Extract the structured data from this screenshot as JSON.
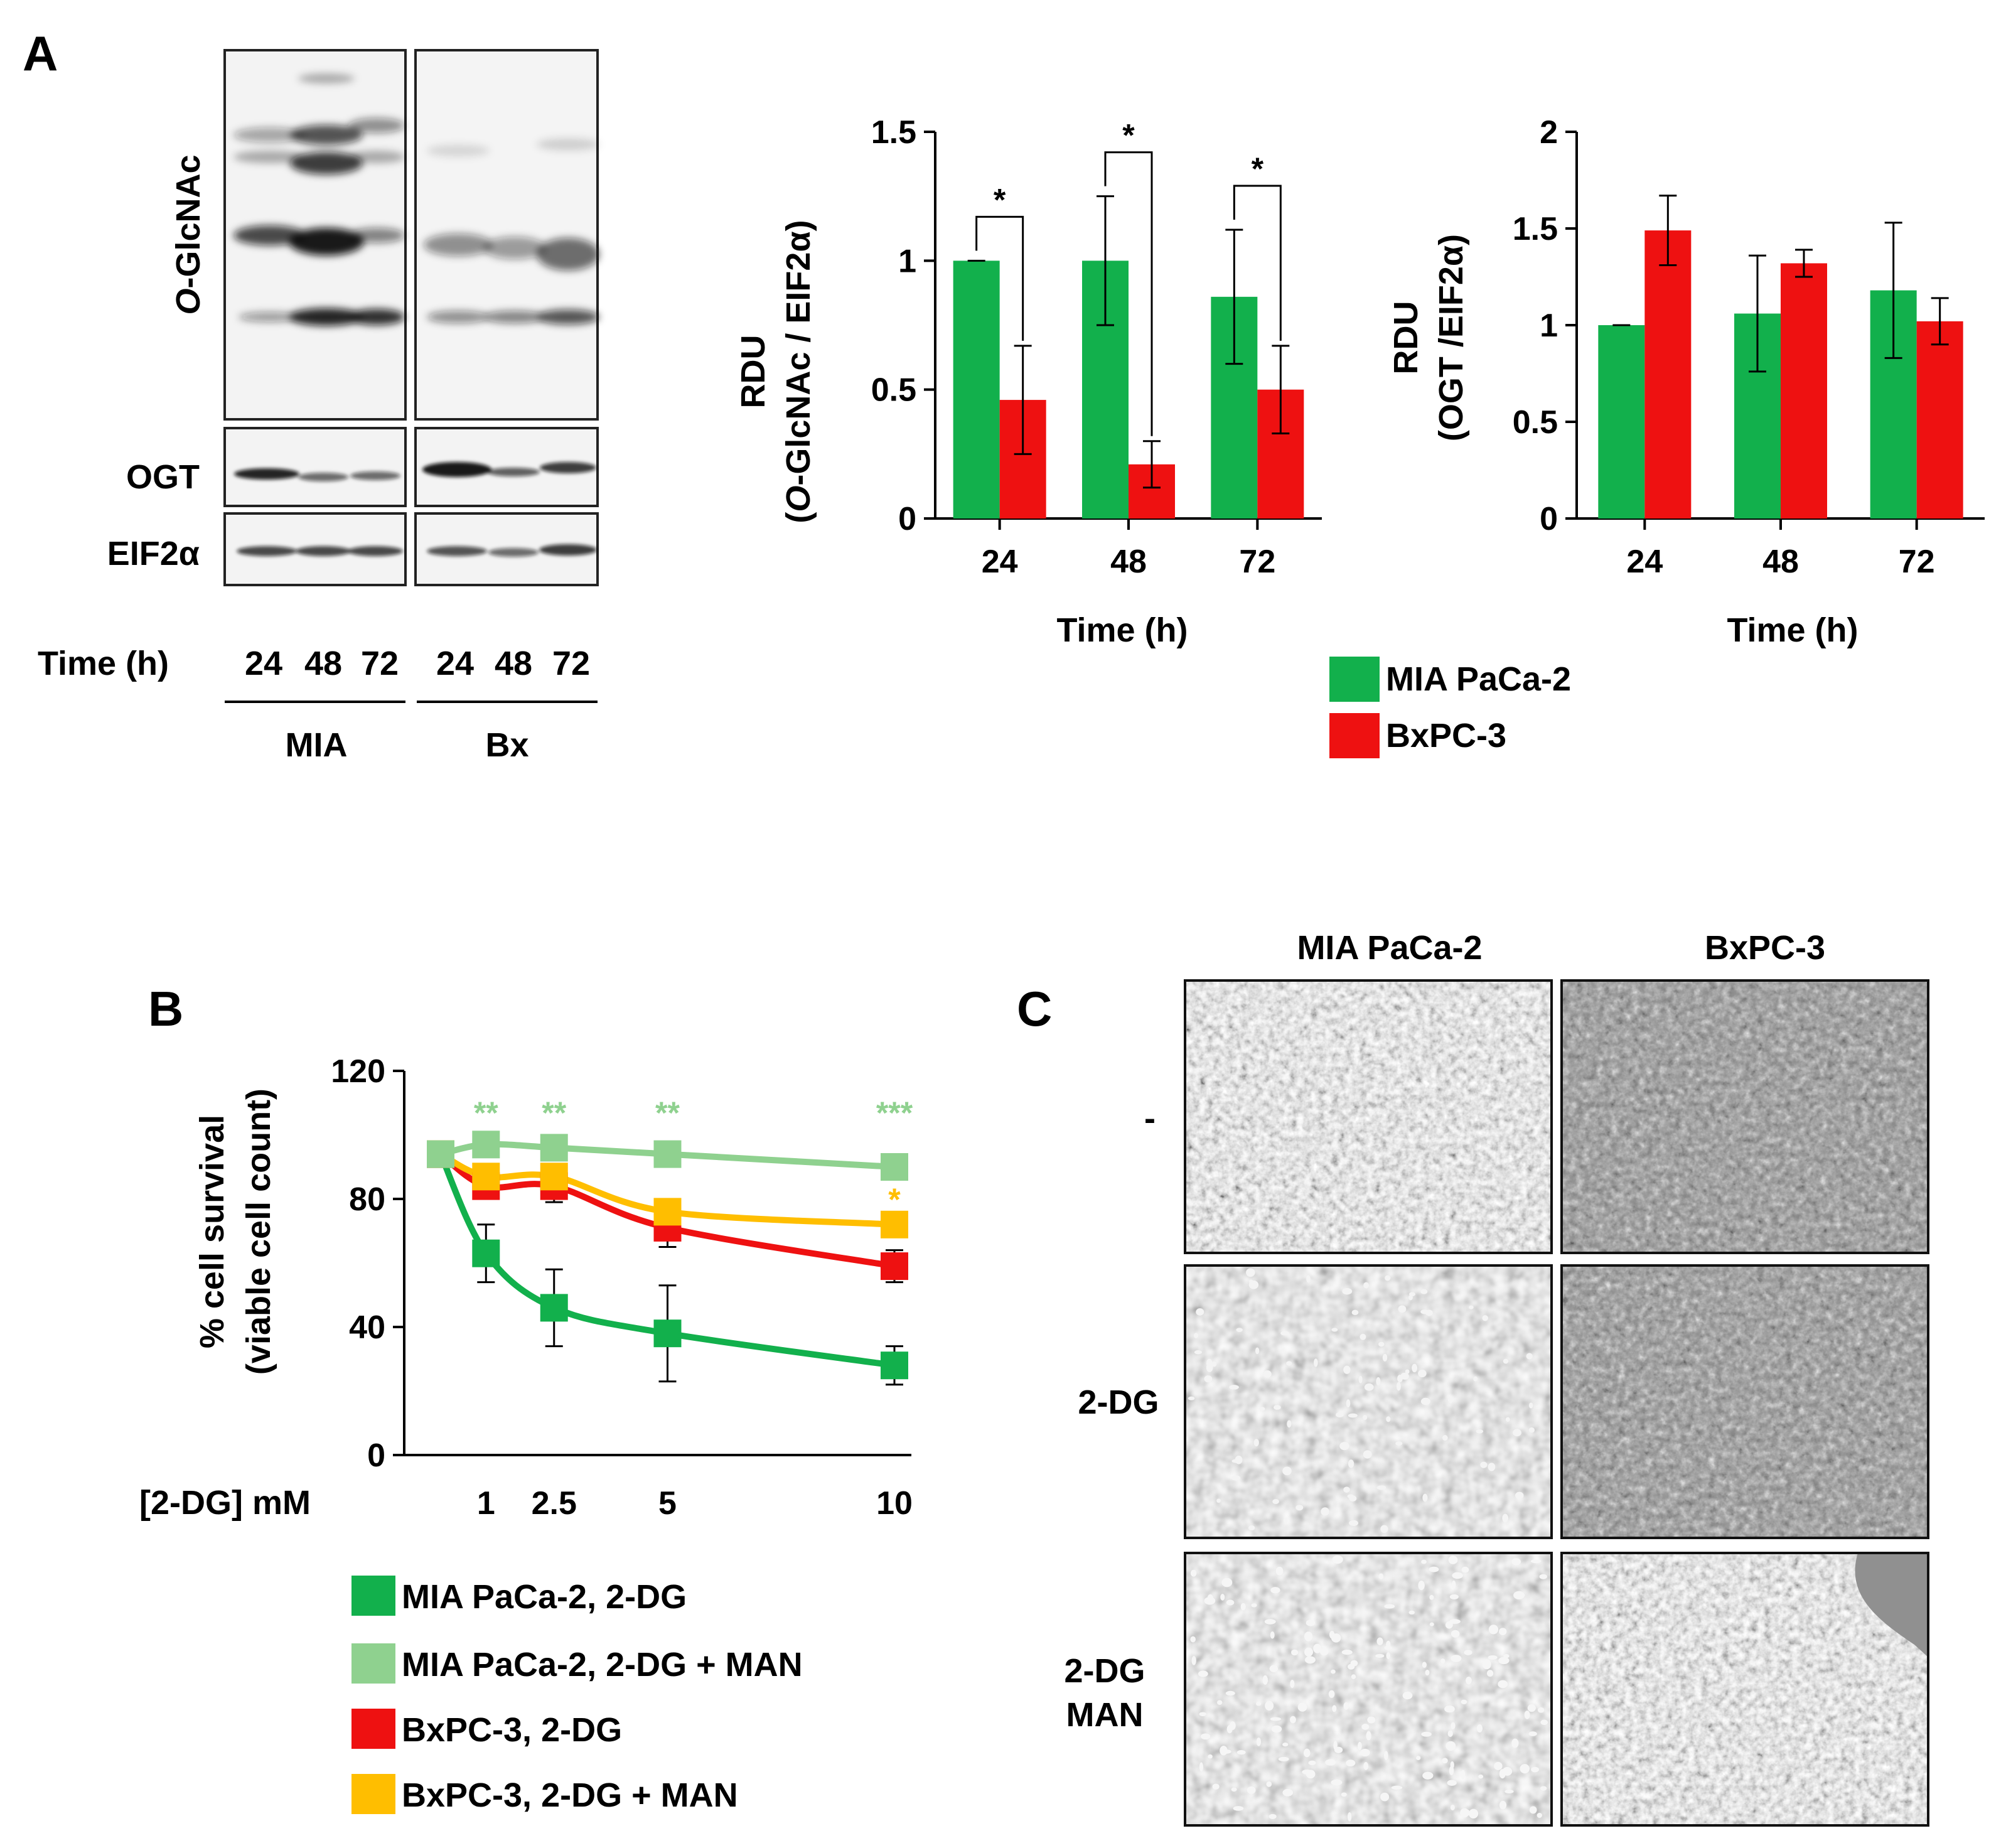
{
  "panel_a": {
    "letter": "A",
    "blot": {
      "rows": [
        "O-GlcNAc",
        "OGT",
        "EIF2α"
      ],
      "time_label": "Time (h)",
      "lanes": [
        "24",
        "48",
        "72",
        "24",
        "48",
        "72"
      ],
      "groups": [
        "MIA",
        "Bx"
      ]
    }
  },
  "panel_b": {
    "letter": "B"
  },
  "panel_c": {
    "letter": "C",
    "columns": [
      "MIA PaCa-2",
      "BxPC-3"
    ],
    "rows": [
      "-",
      "2-DG",
      "2-DG\nMAN"
    ]
  },
  "colors": {
    "mia": "#12b04c",
    "bx": "#ee1111",
    "mia_man": "#8fd18f",
    "bx_man": "#ffbe00"
  },
  "chart_data": [
    {
      "id": "ogl",
      "type": "bar",
      "categories": [
        "24",
        "48",
        "72"
      ],
      "series": [
        {
          "name": "MIA PaCa-2",
          "values": [
            1.0,
            1.0,
            0.86
          ],
          "errors": [
            0.0,
            0.25,
            0.26
          ]
        },
        {
          "name": "BxPC-3",
          "values": [
            0.46,
            0.21,
            0.5
          ],
          "errors": [
            0.21,
            0.09,
            0.17
          ]
        }
      ],
      "significance": [
        "*",
        "*",
        "*"
      ],
      "xlabel": "Time (h)",
      "ylabel_line1": "RDU",
      "ylabel_line2_italic": "O",
      "ylabel_line2_rest": "-GlcNAc / EIF2α)",
      "ylabel_line2_open": "(",
      "yticks": [
        "0",
        "0.5",
        "1",
        "1.5"
      ],
      "ylim": [
        0,
        1.5
      ]
    },
    {
      "id": "ogt",
      "type": "bar",
      "categories": [
        "24",
        "48",
        "72"
      ],
      "series": [
        {
          "name": "MIA PaCa-2",
          "values": [
            1.0,
            1.06,
            1.18
          ],
          "errors": [
            0.0,
            0.3,
            0.35
          ]
        },
        {
          "name": "BxPC-3",
          "values": [
            1.49,
            1.32,
            1.02
          ],
          "errors": [
            0.18,
            0.07,
            0.12
          ]
        }
      ],
      "xlabel": "Time (h)",
      "ylabel_line1": "RDU",
      "ylabel_line2": "(OGT /EIF2α)",
      "yticks": [
        "0",
        "0.5",
        "1",
        "1.5",
        "2"
      ],
      "ylim": [
        0,
        2
      ]
    },
    {
      "id": "survival",
      "type": "line",
      "x": [
        0,
        1,
        2.5,
        5,
        10
      ],
      "xtick_labels": [
        "1",
        "2.5",
        "5",
        "10"
      ],
      "xtick_values": [
        1,
        2.5,
        5,
        10
      ],
      "series": [
        {
          "name": "MIA PaCa-2, 2-DG",
          "values": [
            94,
            63,
            46,
            38,
            28
          ],
          "errors": [
            0,
            9,
            12,
            15,
            6
          ]
        },
        {
          "name": "MIA PaCa-2, 2-DG + MAN",
          "values": [
            94,
            97,
            96,
            94,
            90
          ],
          "errors": [
            0,
            0,
            0,
            0,
            0
          ]
        },
        {
          "name": "BxPC-3, 2-DG",
          "values": [
            94,
            84,
            84,
            71,
            59
          ],
          "errors": [
            0,
            4,
            5,
            6,
            5
          ]
        },
        {
          "name": "BxPC-3, 2-DG + MAN",
          "values": [
            94,
            87,
            87,
            76,
            72
          ],
          "errors": [
            0,
            0,
            0,
            0,
            0
          ]
        }
      ],
      "significance_mia": [
        "**",
        "**",
        "**",
        "***"
      ],
      "significance_mia_x": [
        1,
        2.5,
        5,
        10
      ],
      "significance_bx": "*",
      "xlabel": "[2-DG] mM",
      "ylabel_line1": "% cell survival",
      "ylabel_line2": "(viable cell count)",
      "yticks": [
        "0",
        "40",
        "80",
        "120"
      ],
      "ylim": [
        0,
        120
      ]
    }
  ]
}
